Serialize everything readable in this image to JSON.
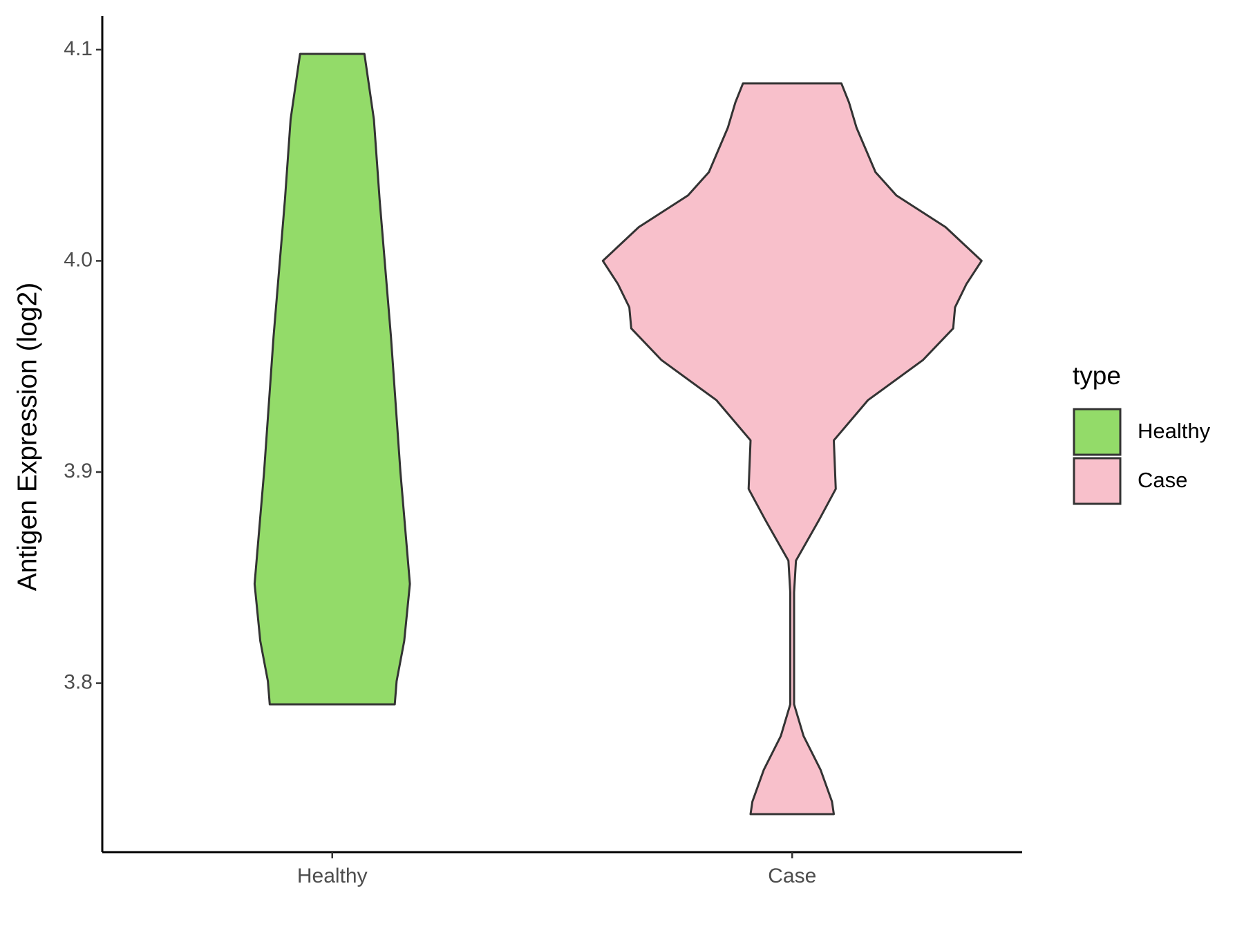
{
  "chart_data": {
    "type": "violin",
    "y_label": "Antigen Expression (log2)",
    "categories": [
      "Healthy",
      "Case"
    ],
    "legend_title": "type",
    "legend": "right",
    "ylim": [
      3.72,
      4.116
    ],
    "yticks": [
      3.8,
      3.9,
      {
        "value": 4.0,
        "label": "4.0"
      },
      4.1
    ],
    "series": [
      {
        "name": "Healthy",
        "color": "#93db69",
        "y": [
          4.098,
          4.067,
          4.029,
          3.964,
          3.9,
          3.847,
          3.82,
          3.801,
          3.79
        ],
        "width": [
          0.17,
          0.22,
          0.25,
          0.31,
          0.36,
          0.41,
          0.38,
          0.34,
          0.33
        ]
      },
      {
        "name": "Case",
        "color": "#f8c0cb",
        "y": [
          4.084,
          4.075,
          4.063,
          4.042,
          4.031,
          4.016,
          4.0,
          3.989,
          3.978,
          3.968,
          3.953,
          3.934,
          3.915,
          3.892,
          3.877,
          3.858,
          3.843,
          3.79,
          3.775,
          3.759,
          3.744,
          3.738
        ],
        "width": [
          0.26,
          0.3,
          0.34,
          0.44,
          0.55,
          0.81,
          1.0,
          0.92,
          0.86,
          0.85,
          0.69,
          0.4,
          0.22,
          0.23,
          0.14,
          0.02,
          0.01,
          0.01,
          0.06,
          0.15,
          0.21,
          0.22
        ]
      }
    ]
  }
}
